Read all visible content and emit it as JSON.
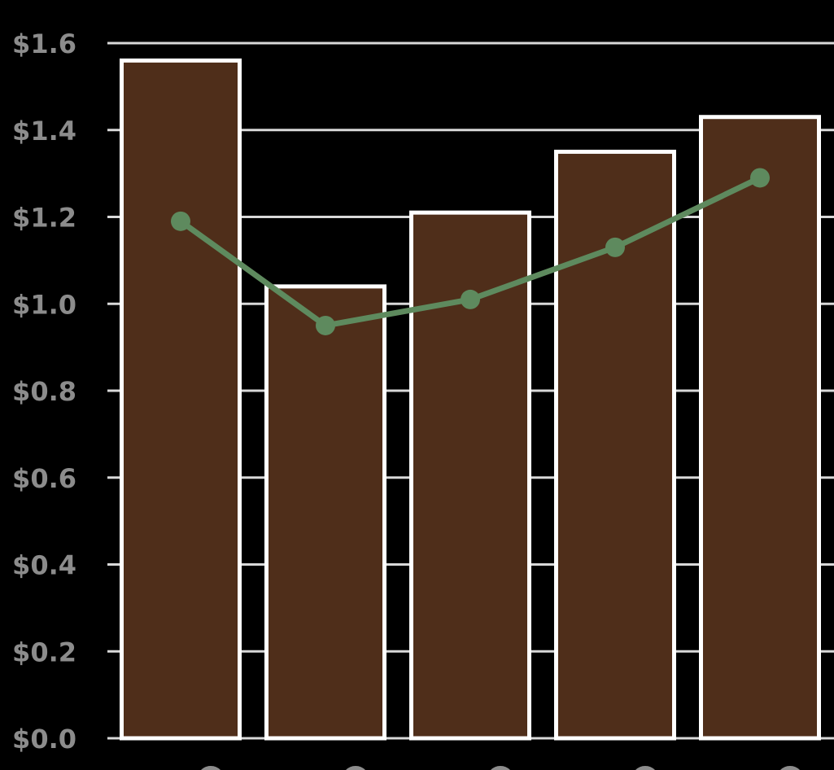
{
  "chart_data": {
    "type": "bar",
    "categories": [
      "",
      "",
      "",
      "",
      ""
    ],
    "series": [
      {
        "type": "bar",
        "values": [
          1.56,
          1.04,
          1.21,
          1.35,
          1.43
        ]
      },
      {
        "type": "line",
        "values": [
          1.19,
          0.95,
          1.01,
          1.13,
          1.29
        ]
      }
    ],
    "ylim": [
      0,
      1.6
    ],
    "yticks": [
      "$0.0",
      "$0.2",
      "$0.4",
      "$0.6",
      "$0.8",
      "$1.0",
      "$1.2",
      "$1.4",
      "$1.6"
    ],
    "grid": true,
    "legend": "none",
    "colors": {
      "bar_fill": "#4f2e1a",
      "bar_stroke": "#ffffff",
      "line": "#5e8a5e",
      "grid": "#d9d9d9",
      "tick_text": "#8c8c8c",
      "background": "#000000"
    }
  }
}
